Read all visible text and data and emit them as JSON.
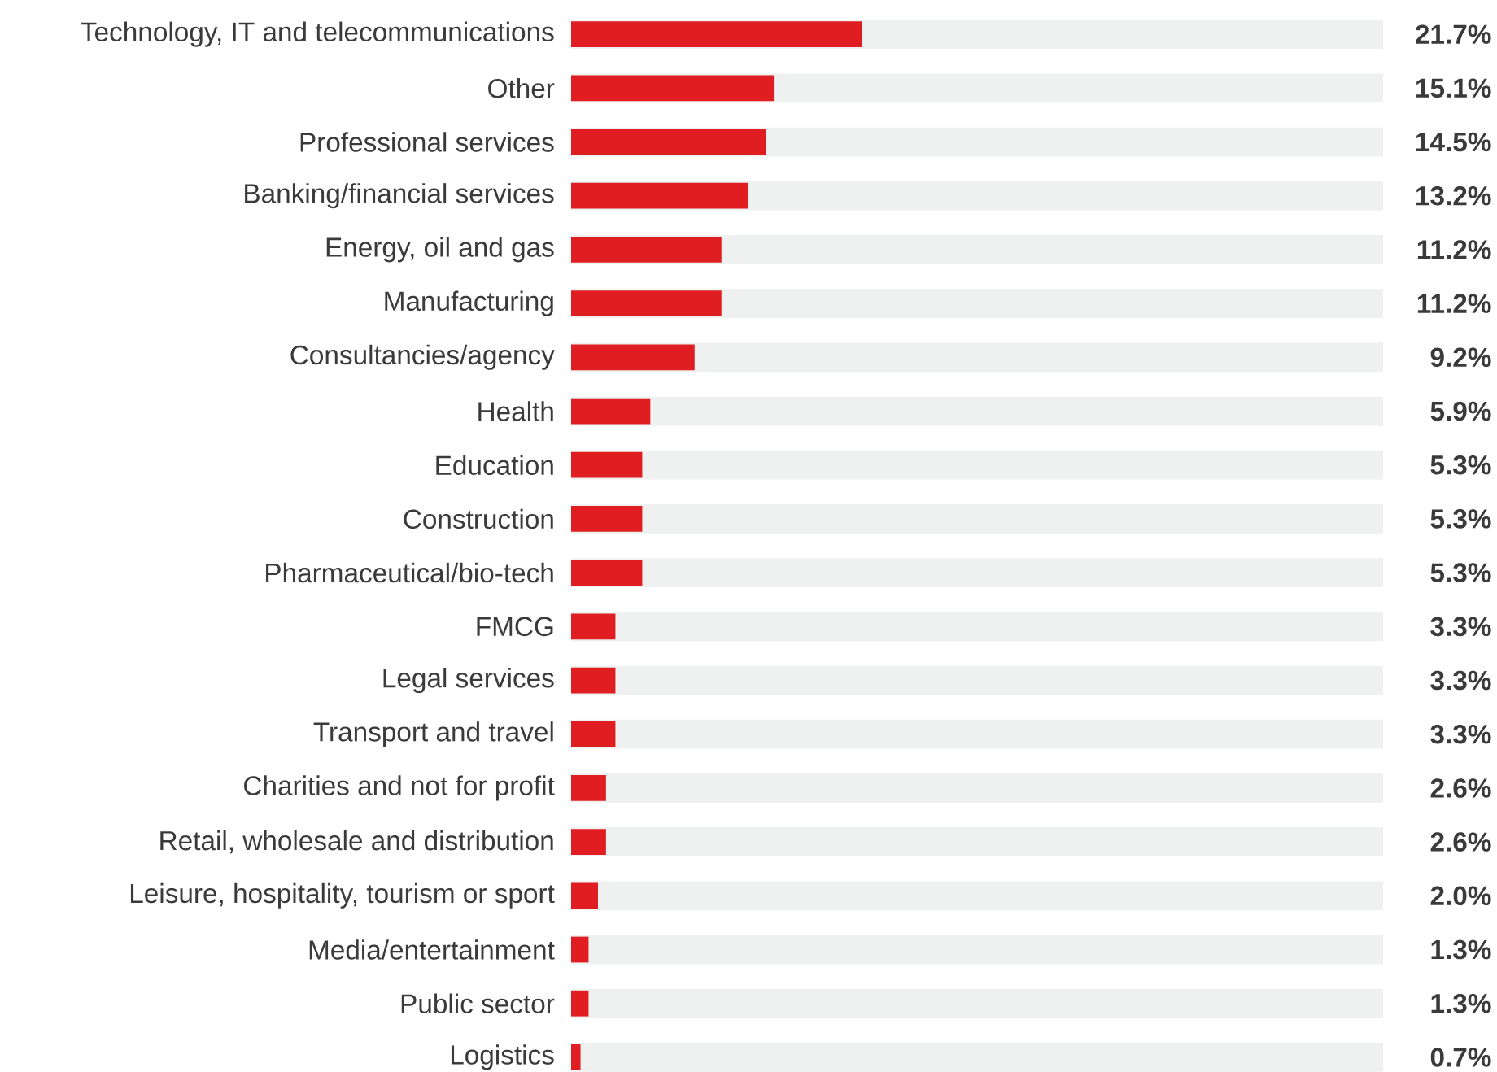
{
  "chart_data": {
    "type": "bar",
    "orientation": "horizontal",
    "color": "#e01e22",
    "xlim": [
      0,
      60.5
    ],
    "categories": [
      "Technology, IT and telecommunications",
      "Other",
      "Professional services",
      "Banking/financial services",
      "Energy, oil and gas",
      "Manufacturing",
      "Consultancies/agency",
      "Health",
      "Education",
      "Construction",
      "Pharmaceutical/bio-tech",
      "FMCG",
      "Legal services",
      "Transport and travel",
      "Charities and not for profit",
      "Retail, wholesale and distribution",
      "Leisure, hospitality, tourism or sport",
      "Media/entertainment",
      "Public sector",
      "Logistics"
    ],
    "values": [
      21.7,
      15.1,
      14.5,
      13.2,
      11.2,
      11.2,
      9.2,
      5.9,
      5.3,
      5.3,
      5.3,
      3.3,
      3.3,
      3.3,
      2.6,
      2.6,
      2.0,
      1.3,
      1.3,
      0.7
    ],
    "value_labels": [
      "21.7%",
      "15.1%",
      "14.5%",
      "13.2%",
      "11.2%",
      "11.2%",
      "9.2%",
      "5.9%",
      "5.3%",
      "5.3%",
      "5.3%",
      "3.3%",
      "3.3%",
      "3.3%",
      "2.6%",
      "2.6%",
      "2.0%",
      "1.3%",
      "1.3%",
      "0.7%"
    ]
  }
}
